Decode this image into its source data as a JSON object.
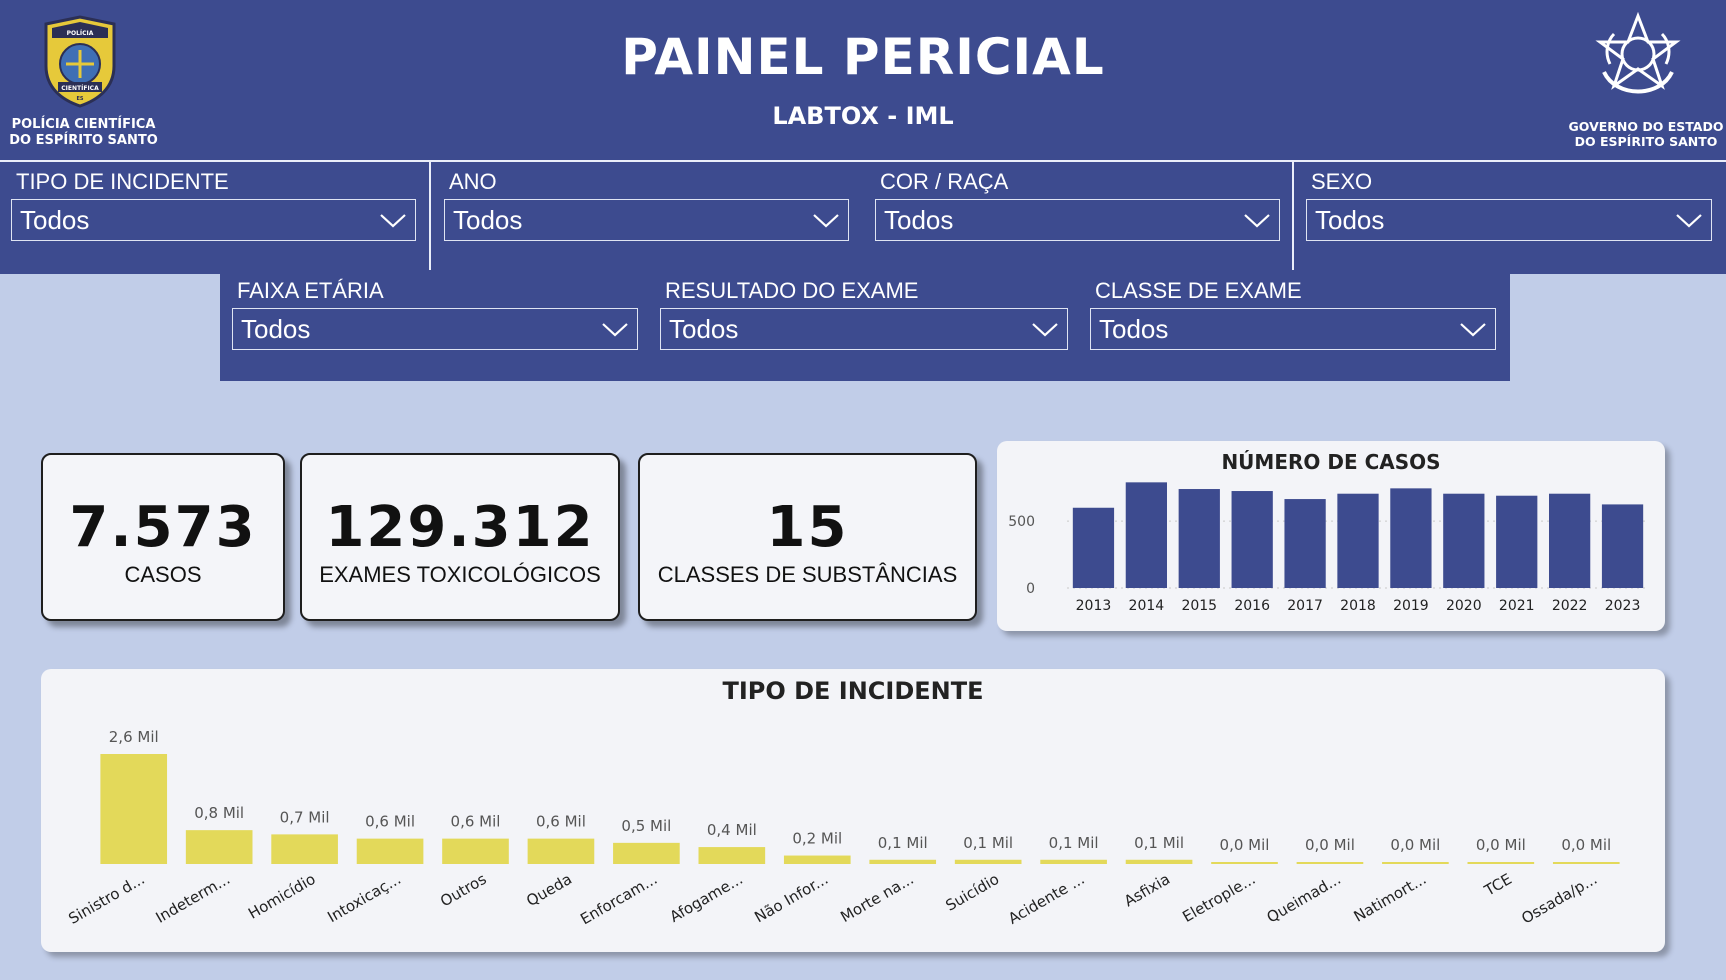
{
  "header": {
    "title": "PAINEL PERICIAL",
    "subtitle": "LABTOX - IML",
    "left_logo_text": [
      "POLÍCIA CIENTÍFICA",
      "DO ESPÍRITO SANTO"
    ],
    "left_logo_badge": [
      "POLÍCIA",
      "CIENTÍFICA",
      "ES"
    ],
    "right_logo_text": [
      "GOVERNO DO ESTADO",
      "DO ESPÍRITO SANTO"
    ],
    "colors": {
      "header_bg": "#3d4b8f",
      "page_bg": "#c1cde8"
    }
  },
  "filters": [
    {
      "label": "TIPO DE INCIDENTE",
      "value": "Todos"
    },
    {
      "label": "ANO",
      "value": "Todos"
    },
    {
      "label": "COR / RAÇA",
      "value": "Todos"
    },
    {
      "label": "SEXO",
      "value": "Todos"
    },
    {
      "label": "FAIXA ETÁRIA",
      "value": "Todos"
    },
    {
      "label": "RESULTADO DO EXAME",
      "value": "Todos"
    },
    {
      "label": "CLASSE DE EXAME",
      "value": "Todos"
    }
  ],
  "kpis": [
    {
      "value": "7.573",
      "label": "CASOS"
    },
    {
      "value": "129.312",
      "label": "EXAMES TOXICOLÓGICOS"
    },
    {
      "value": "15",
      "label": "CLASSES DE SUBSTÂNCIAS"
    }
  ],
  "chart_data": [
    {
      "type": "bar",
      "title": "NÚMERO DE CASOS",
      "categories": [
        "2013",
        "2014",
        "2015",
        "2016",
        "2017",
        "2018",
        "2019",
        "2020",
        "2021",
        "2022",
        "2023"
      ],
      "values": [
        600,
        790,
        740,
        725,
        665,
        705,
        745,
        705,
        690,
        705,
        625
      ],
      "ylim": [
        0,
        800
      ],
      "yticks": [
        0,
        500
      ],
      "ytick_labels": [
        "0",
        "500"
      ],
      "grid": true,
      "color": "#3d4b8f"
    },
    {
      "type": "bar",
      "title": "TIPO DE INCIDENTE",
      "categories": [
        "Sinistro d...",
        "Indeterm...",
        "Homicídio",
        "Intoxicaç...",
        "Outros",
        "Queda",
        "Enforcam...",
        "Afogame...",
        "Não Infor...",
        "Morte na...",
        "Suicídio",
        "Acidente ...",
        "Asfixia",
        "Eletrople...",
        "Queimad...",
        "Natimort...",
        "TCE",
        "Ossada/p..."
      ],
      "values": [
        2.6,
        0.8,
        0.7,
        0.6,
        0.6,
        0.6,
        0.5,
        0.4,
        0.2,
        0.1,
        0.1,
        0.1,
        0.1,
        0.0,
        0.0,
        0.0,
        0.0,
        0.0
      ],
      "data_labels": [
        "2,6 Mil",
        "0,8 Mil",
        "0,7 Mil",
        "0,6 Mil",
        "0,6 Mil",
        "0,6 Mil",
        "0,5 Mil",
        "0,4 Mil",
        "0,2 Mil",
        "0,1 Mil",
        "0,1 Mil",
        "0,1 Mil",
        "0,1 Mil",
        "0,0 Mil",
        "0,0 Mil",
        "0,0 Mil",
        "0,0 Mil",
        "0,0 Mil"
      ],
      "unit": "Mil",
      "color": "#e3d95a"
    }
  ]
}
